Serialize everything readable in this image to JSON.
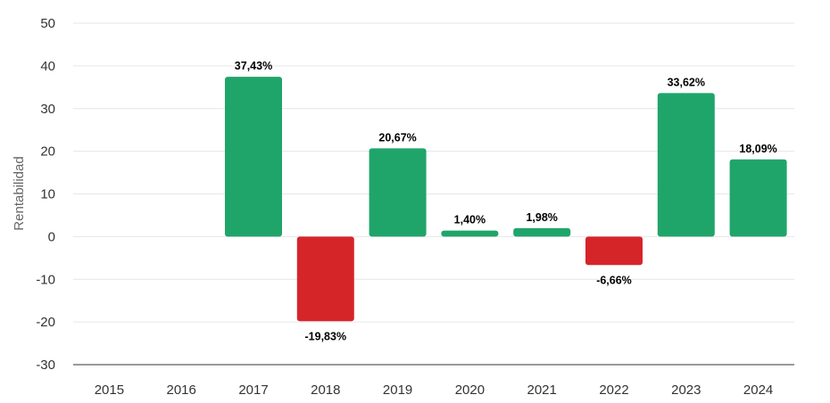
{
  "chart_data": {
    "type": "bar",
    "ylabel": "Rentabilidad",
    "ylim": [
      -30,
      50
    ],
    "yticks": [
      "50",
      "40",
      "30",
      "20",
      "10",
      "0",
      "-10",
      "-20",
      "-30"
    ],
    "ytick_values": [
      50,
      40,
      30,
      20,
      10,
      0,
      -10,
      -20,
      -30
    ],
    "categories": [
      "2015",
      "2016",
      "2017",
      "2018",
      "2019",
      "2020",
      "2021",
      "2022",
      "2023",
      "2024"
    ],
    "values": [
      null,
      null,
      37.43,
      -19.83,
      20.67,
      1.4,
      1.98,
      -6.66,
      33.62,
      18.09
    ],
    "data_labels": [
      "",
      "",
      "37,43%",
      "-19,83%",
      "20,67%",
      "1,40%",
      "1,98%",
      "-6,66%",
      "33,62%",
      "18,09%"
    ],
    "grid": true,
    "legend": "none",
    "colors": {
      "positive": "#1fa56a",
      "negative": "#d62529",
      "grid": "#e6e6e6",
      "axis": "#333333"
    }
  }
}
